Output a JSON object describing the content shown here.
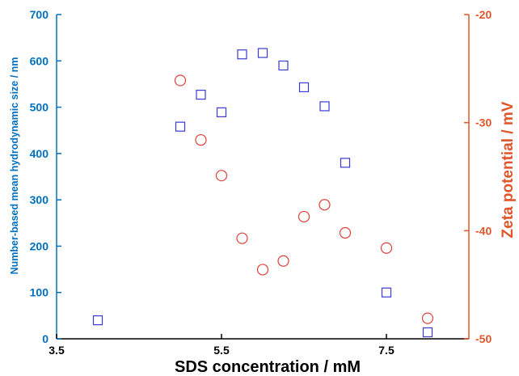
{
  "chart_data": {
    "type": "scatter",
    "title": "",
    "xlabel": "SDS concentration / mM",
    "ylabel_left": "Number-based mean hydrodynamic size / nm",
    "ylabel_right": "Zeta potential / mV",
    "xlim": [
      3.5,
      8.5
    ],
    "ylim_left": [
      0,
      700
    ],
    "ylim_right": [
      -50,
      -20
    ],
    "xticks": [
      "3.5",
      "5.5",
      "7.5"
    ],
    "xtick_values": [
      3.5,
      5.5,
      7.5
    ],
    "yticks_left": [
      "0",
      "100",
      "200",
      "300",
      "400",
      "500",
      "600",
      "700"
    ],
    "ytick_values_left": [
      0,
      100,
      200,
      300,
      400,
      500,
      600,
      700
    ],
    "yticks_right": [
      "-50",
      "-40",
      "-30",
      "-20"
    ],
    "ytick_values_right": [
      -50,
      -40,
      -30,
      -20
    ],
    "grid": false,
    "legend": "none",
    "series": [
      {
        "axis": "left",
        "marker": "square",
        "color": "#3a3ad6",
        "x": [
          4.0,
          5.0,
          5.25,
          5.5,
          5.75,
          6.0,
          6.25,
          6.5,
          6.75,
          7.0,
          7.5,
          8.0
        ],
        "y": [
          40,
          458,
          527,
          489,
          614,
          617,
          590,
          543,
          502,
          380,
          100,
          14
        ]
      },
      {
        "axis": "right",
        "marker": "circle",
        "color": "#e0403a",
        "x": [
          5.0,
          5.25,
          5.5,
          5.75,
          6.0,
          6.25,
          6.5,
          6.75,
          7.0,
          7.5,
          8.0
        ],
        "y": [
          -26.1,
          -31.6,
          -34.9,
          -40.7,
          -43.6,
          -42.8,
          -38.7,
          -37.6,
          -40.2,
          -41.6,
          -48.1
        ]
      }
    ]
  }
}
